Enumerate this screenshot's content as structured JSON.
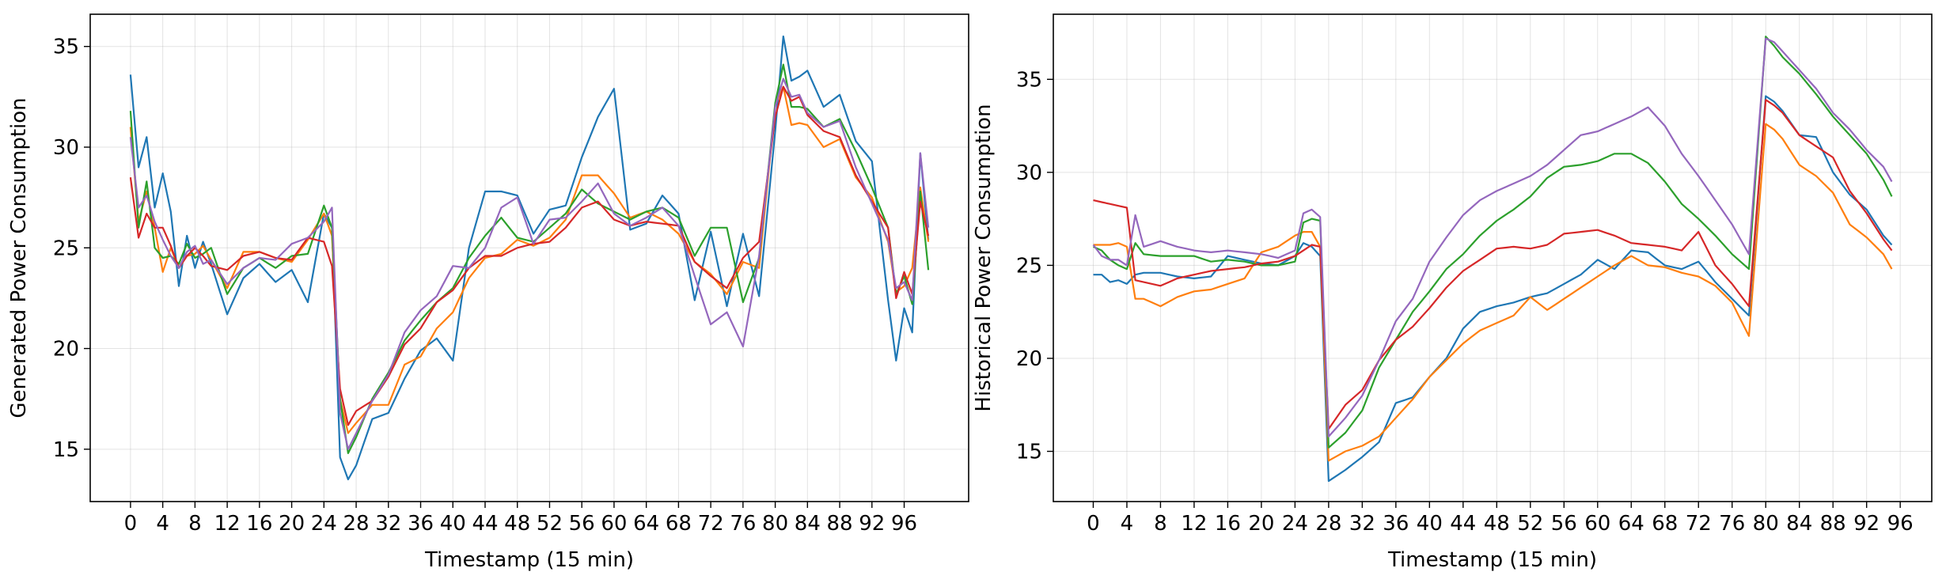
{
  "chart_data": [
    {
      "type": "line",
      "xlabel": "Timestamp (15 min)",
      "ylabel": "Generated Power Consumption",
      "xlim": [
        -5,
        104
      ],
      "ylim": [
        12.4,
        36.6
      ],
      "xticks": [
        0,
        4,
        8,
        12,
        16,
        20,
        24,
        28,
        32,
        36,
        40,
        44,
        48,
        52,
        56,
        60,
        64,
        68,
        72,
        76,
        80,
        84,
        88,
        92,
        96
      ],
      "yticks": [
        15,
        20,
        25,
        30,
        35
      ],
      "grid": true,
      "legend": "none",
      "anchors": [
        0,
        1,
        2,
        3,
        4,
        5,
        6,
        7,
        8,
        9,
        10,
        12,
        14,
        16,
        18,
        20,
        22,
        24,
        25,
        26,
        27,
        28,
        30,
        32,
        34,
        36,
        38,
        40,
        42,
        44,
        46,
        48,
        50,
        52,
        54,
        56,
        58,
        60,
        62,
        64,
        66,
        68,
        70,
        72,
        74,
        76,
        78,
        80,
        81,
        82,
        83,
        84,
        86,
        88,
        90,
        92,
        94,
        95,
        96,
        97,
        98,
        99
      ],
      "series": [
        {
          "color": "#1f77b4",
          "values": [
            33.6,
            29.0,
            30.5,
            27.0,
            28.7,
            26.8,
            23.1,
            25.6,
            24.0,
            25.3,
            24.2,
            21.7,
            23.5,
            24.2,
            23.3,
            23.9,
            22.3,
            26.7,
            26.0,
            14.6,
            13.5,
            14.2,
            16.5,
            16.8,
            18.5,
            19.9,
            20.5,
            19.4,
            25.0,
            27.8,
            27.8,
            27.6,
            25.7,
            26.9,
            27.1,
            29.5,
            31.5,
            32.9,
            25.9,
            26.2,
            27.6,
            26.7,
            22.4,
            25.8,
            22.1,
            25.7,
            22.6,
            30.8,
            35.5,
            33.3,
            33.5,
            33.8,
            32.0,
            32.6,
            30.3,
            29.3,
            22.4,
            19.4,
            22.0,
            20.8,
            29.7,
            25.4
          ]
        },
        {
          "color": "#ff7f0e",
          "values": [
            31.0,
            26.3,
            27.8,
            26.0,
            23.8,
            25.0,
            24.0,
            24.6,
            24.7,
            25.1,
            24.4,
            23.0,
            24.8,
            24.8,
            24.5,
            24.3,
            25.4,
            26.7,
            25.6,
            17.5,
            15.8,
            16.3,
            17.2,
            17.2,
            19.2,
            19.6,
            21.0,
            21.8,
            23.5,
            24.5,
            24.7,
            25.4,
            25.1,
            25.5,
            26.4,
            28.6,
            28.6,
            27.7,
            26.5,
            26.8,
            26.4,
            25.7,
            24.3,
            23.7,
            22.7,
            24.3,
            24.0,
            32.1,
            33.0,
            31.1,
            31.2,
            31.1,
            30.0,
            30.4,
            28.5,
            27.5,
            25.3,
            22.8,
            23.1,
            24.0,
            28.0,
            25.3
          ]
        },
        {
          "color": "#2ca02c",
          "values": [
            31.8,
            26.0,
            28.3,
            25.0,
            24.5,
            24.6,
            24.2,
            25.2,
            24.5,
            24.7,
            25.0,
            22.7,
            24.0,
            24.5,
            24.0,
            24.6,
            24.7,
            27.1,
            26.0,
            17.5,
            14.8,
            15.6,
            17.5,
            18.8,
            20.4,
            21.4,
            22.3,
            23.0,
            24.5,
            25.6,
            26.5,
            25.5,
            25.3,
            26.0,
            26.7,
            27.9,
            27.2,
            26.8,
            26.4,
            26.8,
            27.0,
            26.5,
            24.6,
            26.0,
            26.0,
            22.3,
            24.5,
            32.2,
            34.1,
            32.0,
            32.0,
            31.9,
            31.0,
            31.4,
            29.8,
            28.0,
            26.0,
            22.7,
            23.6,
            22.2,
            27.8,
            23.9
          ]
        },
        {
          "color": "#d62728",
          "values": [
            28.5,
            25.5,
            26.7,
            26.0,
            26.0,
            25.1,
            24.0,
            24.6,
            25.0,
            24.6,
            24.1,
            23.9,
            24.6,
            24.8,
            24.5,
            24.4,
            25.5,
            25.3,
            24.1,
            18.0,
            16.2,
            16.9,
            17.4,
            18.6,
            20.2,
            21.0,
            22.3,
            22.9,
            24.0,
            24.6,
            24.6,
            25.0,
            25.2,
            25.3,
            26.0,
            27.0,
            27.3,
            26.4,
            26.1,
            26.3,
            26.2,
            26.1,
            24.3,
            23.6,
            23.0,
            24.5,
            25.3,
            31.5,
            33.0,
            32.3,
            32.5,
            31.6,
            30.8,
            30.5,
            28.6,
            27.3,
            26.0,
            22.5,
            23.8,
            22.7,
            27.3,
            25.6
          ]
        },
        {
          "color": "#9467bd",
          "values": [
            30.5,
            27.0,
            27.6,
            26.3,
            25.4,
            24.6,
            24.0,
            24.8,
            25.1,
            24.2,
            24.4,
            23.2,
            24.0,
            24.5,
            24.4,
            25.2,
            25.5,
            26.3,
            27.0,
            16.8,
            15.0,
            15.8,
            17.4,
            18.7,
            20.8,
            21.9,
            22.6,
            24.1,
            24.0,
            25.0,
            27.0,
            27.5,
            25.2,
            26.4,
            26.5,
            27.3,
            28.2,
            26.7,
            26.1,
            26.5,
            27.0,
            26.1,
            23.6,
            21.2,
            21.8,
            20.1,
            24.6,
            32.0,
            33.4,
            32.5,
            32.6,
            31.7,
            31.0,
            31.3,
            29.0,
            27.2,
            25.4,
            23.0,
            23.3,
            22.4,
            29.7,
            26.0
          ]
        }
      ]
    },
    {
      "type": "line",
      "xlabel": "Timestamp (15 min)",
      "ylabel": "Historical Power Consumption",
      "xlim": [
        -4.75,
        99.75
      ],
      "ylim": [
        12.3,
        38.5
      ],
      "xticks": [
        0,
        4,
        8,
        12,
        16,
        20,
        24,
        28,
        32,
        36,
        40,
        44,
        48,
        52,
        56,
        60,
        64,
        68,
        72,
        76,
        80,
        84,
        88,
        92,
        96
      ],
      "yticks": [
        15,
        20,
        25,
        30,
        35
      ],
      "grid": true,
      "legend": "none",
      "anchors": [
        0,
        1,
        2,
        3,
        4,
        5,
        6,
        8,
        10,
        12,
        14,
        16,
        18,
        20,
        22,
        24,
        25,
        26,
        27,
        28,
        30,
        32,
        34,
        36,
        38,
        40,
        42,
        44,
        46,
        48,
        50,
        52,
        54,
        56,
        58,
        60,
        62,
        64,
        66,
        68,
        70,
        72,
        74,
        76,
        78,
        80,
        81,
        82,
        84,
        86,
        88,
        90,
        92,
        94,
        95
      ],
      "series": [
        {
          "color": "#1f77b4",
          "values": [
            24.5,
            24.5,
            24.1,
            24.2,
            24.0,
            24.5,
            24.6,
            24.6,
            24.4,
            24.3,
            24.4,
            25.5,
            25.3,
            25.1,
            25.0,
            25.5,
            26.2,
            26.0,
            25.5,
            13.4,
            14.0,
            14.7,
            15.5,
            17.6,
            17.9,
            19.0,
            20.0,
            21.6,
            22.5,
            22.8,
            23.0,
            23.3,
            23.5,
            24.0,
            24.5,
            25.3,
            24.8,
            25.8,
            25.7,
            25.0,
            24.8,
            25.2,
            24.1,
            23.2,
            22.3,
            34.1,
            33.8,
            33.3,
            32.0,
            31.9,
            30.0,
            28.8,
            28.0,
            26.6,
            26.1
          ]
        },
        {
          "color": "#ff7f0e",
          "values": [
            26.1,
            26.1,
            26.1,
            26.2,
            26.0,
            23.2,
            23.2,
            22.8,
            23.3,
            23.6,
            23.7,
            24.0,
            24.3,
            25.7,
            26.0,
            26.6,
            26.8,
            26.8,
            26.0,
            14.5,
            15.0,
            15.3,
            15.8,
            16.8,
            17.8,
            19.0,
            19.9,
            20.8,
            21.5,
            21.9,
            22.3,
            23.3,
            22.6,
            23.2,
            23.8,
            24.4,
            25.0,
            25.5,
            25.0,
            24.9,
            24.6,
            24.4,
            23.9,
            23.0,
            21.2,
            32.6,
            32.3,
            31.8,
            30.4,
            29.8,
            28.9,
            27.2,
            26.5,
            25.6,
            24.8
          ]
        },
        {
          "color": "#2ca02c",
          "values": [
            26.0,
            25.8,
            25.3,
            25.0,
            24.8,
            26.2,
            25.6,
            25.5,
            25.5,
            25.5,
            25.2,
            25.3,
            25.2,
            25.0,
            25.0,
            25.2,
            27.3,
            27.5,
            27.4,
            15.2,
            16.0,
            17.2,
            19.5,
            21.0,
            22.5,
            23.6,
            24.8,
            25.6,
            26.6,
            27.4,
            28.0,
            28.7,
            29.7,
            30.3,
            30.4,
            30.6,
            31.0,
            31.0,
            30.5,
            29.5,
            28.3,
            27.5,
            26.6,
            25.6,
            24.8,
            37.3,
            36.8,
            36.2,
            35.3,
            34.2,
            33.0,
            32.0,
            31.0,
            29.6,
            28.7
          ]
        },
        {
          "color": "#d62728",
          "values": [
            28.5,
            28.4,
            28.3,
            28.2,
            28.1,
            24.2,
            24.1,
            23.9,
            24.3,
            24.5,
            24.7,
            24.8,
            24.9,
            25.1,
            25.2,
            25.5,
            25.8,
            26.1,
            26.0,
            16.2,
            17.5,
            18.3,
            19.9,
            21.0,
            21.7,
            22.7,
            23.8,
            24.7,
            25.3,
            25.9,
            26.0,
            25.9,
            26.1,
            26.7,
            26.8,
            26.9,
            26.6,
            26.2,
            26.1,
            26.0,
            25.8,
            26.8,
            25.0,
            24.0,
            22.8,
            33.9,
            33.6,
            33.2,
            32.0,
            31.4,
            30.8,
            29.0,
            27.8,
            26.4,
            25.8
          ]
        },
        {
          "color": "#9467bd",
          "values": [
            26.1,
            25.5,
            25.3,
            25.3,
            25.0,
            27.7,
            26.0,
            26.3,
            26.0,
            25.8,
            25.7,
            25.8,
            25.7,
            25.6,
            25.4,
            25.8,
            27.8,
            28.0,
            27.6,
            15.8,
            16.8,
            18.0,
            19.9,
            22.0,
            23.2,
            25.2,
            26.5,
            27.7,
            28.5,
            29.0,
            29.4,
            29.8,
            30.4,
            31.2,
            32.0,
            32.2,
            32.6,
            33.0,
            33.5,
            32.5,
            31.0,
            29.8,
            28.5,
            27.2,
            25.6,
            37.2,
            37.0,
            36.5,
            35.5,
            34.5,
            33.2,
            32.3,
            31.2,
            30.3,
            29.5
          ]
        }
      ]
    }
  ]
}
